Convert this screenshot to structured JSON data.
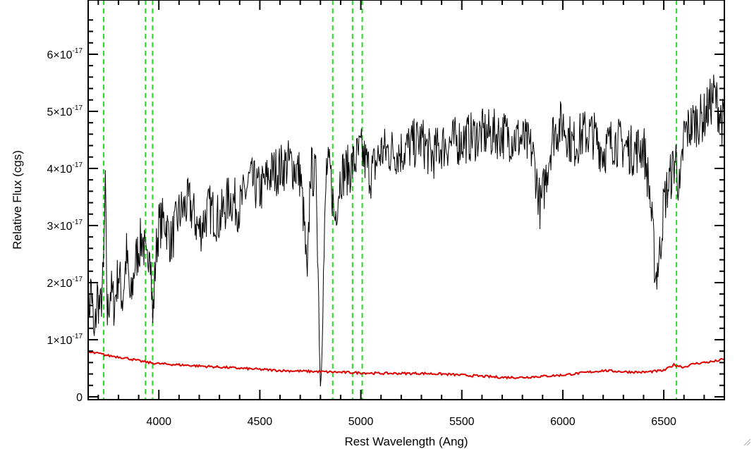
{
  "chart_data": {
    "type": "line",
    "title": "",
    "xlabel": "Rest Wavelength (Ang)",
    "ylabel": "Relative Flux (cgs)",
    "xlim": [
      3650,
      6800
    ],
    "ylim": [
      -0.05,
      6.95
    ],
    "y_scale_note": "×10^-17",
    "x_ticks": [
      {
        "value": 4000,
        "label": "4000"
      },
      {
        "value": 4500,
        "label": "4500"
      },
      {
        "value": 5000,
        "label": "5000"
      },
      {
        "value": 5500,
        "label": "5500"
      },
      {
        "value": 6000,
        "label": "6000"
      },
      {
        "value": 6500,
        "label": "6500"
      }
    ],
    "y_ticks": [
      {
        "value": 0,
        "mant": "0",
        "exp": ""
      },
      {
        "value": 1,
        "mant": "1×10",
        "exp": "-17"
      },
      {
        "value": 2,
        "mant": "2×10",
        "exp": "-17"
      },
      {
        "value": 3,
        "mant": "3×10",
        "exp": "-17"
      },
      {
        "value": 4,
        "mant": "4×10",
        "exp": "-17"
      },
      {
        "value": 5,
        "mant": "5×10",
        "exp": "-17"
      },
      {
        "value": 6,
        "mant": "6×10",
        "exp": "-17"
      }
    ],
    "grid": false,
    "colors": {
      "spectrum": "#000000",
      "error": "#e00000",
      "lines": "#22dd22"
    },
    "vertical_lines": [
      3727,
      3934,
      3969,
      4861,
      4959,
      5007,
      6563
    ],
    "series": [
      {
        "color": "#000000",
        "x": [
          3650,
          3665,
          3680,
          3695,
          3710,
          3725,
          3735,
          3745,
          3760,
          3780,
          3800,
          3820,
          3840,
          3860,
          3880,
          3900,
          3920,
          3940,
          3955,
          3970,
          3985,
          4000,
          4030,
          4060,
          4100,
          4150,
          4200,
          4250,
          4300,
          4350,
          4400,
          4450,
          4500,
          4550,
          4600,
          4650,
          4700,
          4720,
          4735,
          4750,
          4780,
          4800,
          4830,
          4850,
          4870,
          4900,
          4950,
          5000,
          5050,
          5100,
          5200,
          5300,
          5350,
          5400,
          5500,
          5600,
          5700,
          5800,
          5850,
          5890,
          5950,
          6000,
          6050,
          6100,
          6150,
          6200,
          6250,
          6300,
          6350,
          6400,
          6430,
          6460,
          6480,
          6500,
          6530,
          6560,
          6580,
          6600,
          6650,
          6700,
          6750,
          6800
        ],
        "y": [
          1.3,
          2.0,
          0.9,
          1.8,
          1.5,
          2.1,
          3.6,
          1.4,
          1.9,
          1.6,
          2.2,
          1.7,
          2.5,
          1.6,
          2.3,
          2.6,
          2.8,
          2.2,
          2.9,
          1.3,
          2.5,
          3.0,
          3.1,
          2.7,
          3.2,
          3.4,
          2.9,
          3.3,
          3.1,
          3.5,
          3.3,
          3.8,
          3.6,
          3.9,
          4.0,
          4.1,
          3.9,
          3.0,
          1.9,
          4.0,
          3.8,
          0.2,
          4.0,
          3.9,
          3.1,
          3.9,
          4.0,
          4.3,
          3.9,
          4.3,
          4.3,
          4.5,
          4.2,
          4.4,
          4.5,
          4.6,
          4.6,
          4.5,
          4.3,
          3.3,
          4.6,
          4.8,
          4.4,
          4.6,
          4.6,
          4.3,
          4.5,
          4.4,
          4.3,
          4.4,
          3.6,
          2.1,
          2.5,
          3.4,
          3.8,
          4.2,
          3.5,
          4.6,
          4.8,
          4.9,
          5.3,
          4.7
        ]
      },
      {
        "color": "#e00000",
        "x": [
          3650,
          3700,
          3750,
          3800,
          3850,
          3900,
          3950,
          4000,
          4100,
          4200,
          4300,
          4400,
          4500,
          4600,
          4700,
          4800,
          4900,
          5000,
          5100,
          5200,
          5300,
          5400,
          5500,
          5600,
          5700,
          5800,
          5900,
          6000,
          6100,
          6200,
          6300,
          6400,
          6500,
          6550,
          6600,
          6650,
          6700,
          6750,
          6800
        ],
        "y": [
          0.78,
          0.76,
          0.72,
          0.7,
          0.67,
          0.63,
          0.6,
          0.58,
          0.56,
          0.54,
          0.52,
          0.5,
          0.48,
          0.46,
          0.45,
          0.44,
          0.43,
          0.42,
          0.41,
          0.41,
          0.41,
          0.4,
          0.38,
          0.36,
          0.34,
          0.34,
          0.36,
          0.38,
          0.42,
          0.46,
          0.44,
          0.43,
          0.46,
          0.56,
          0.52,
          0.58,
          0.6,
          0.62,
          0.66
        ]
      }
    ]
  }
}
